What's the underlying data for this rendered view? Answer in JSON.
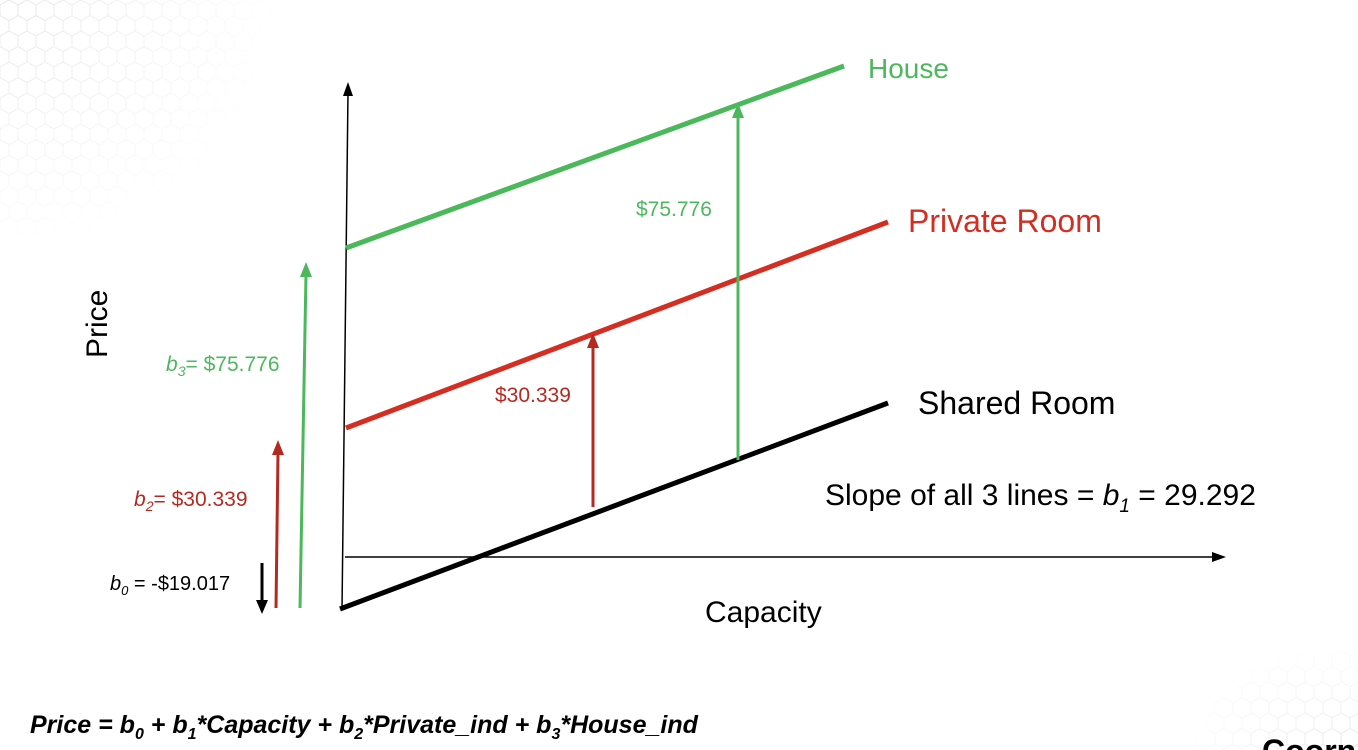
{
  "colors": {
    "house": "#4cb85c",
    "private_room": "#d42e22",
    "shared_room": "#000000",
    "axis": "#000000",
    "offset_private": "#b52a20",
    "offset_house": "#4cb85c"
  },
  "axes": {
    "y_label": "Price",
    "x_label": "Capacity"
  },
  "lines": {
    "house": "House",
    "private_room": "Private Room",
    "shared_room": "Shared Room"
  },
  "slope": {
    "prefix": "Slope of all 3 lines = ",
    "symbol": "b",
    "subscript": "1",
    "suffix": " = 29.292"
  },
  "coefficients": {
    "b0": {
      "symbol": "b",
      "subscript": "0",
      "text": " = -$19.017"
    },
    "b2": {
      "symbol": "b",
      "subscript": "2",
      "text": "= $30.339"
    },
    "b3": {
      "symbol": "b",
      "subscript": "3",
      "text": "= $75.776"
    }
  },
  "offsets": {
    "private": "$30.339",
    "house": "$75.776"
  },
  "equation": {
    "lead": "Price = ",
    "b0": "b",
    "b0_sub": "0",
    "p1": " + ",
    "b1": "b",
    "b1_sub": "1",
    "t1": "*Capacity + ",
    "b2": "b",
    "b2_sub": "2",
    "t2": "*Private_ind + ",
    "b3": "b",
    "b3_sub": "3",
    "t3": "*House_ind"
  },
  "corner_text": "Coorn"
}
